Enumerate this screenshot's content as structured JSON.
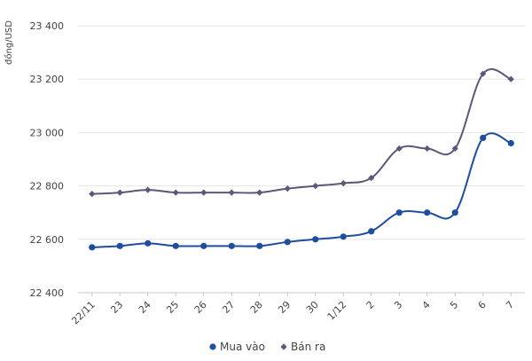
{
  "chart_data": {
    "type": "line",
    "ylabel": "đồng/USD",
    "ylim": [
      22400,
      23400
    ],
    "yticks": [
      22400,
      22600,
      22800,
      23000,
      23200,
      23400
    ],
    "ytick_labels": [
      "22 400",
      "22 600",
      "22 800",
      "23 000",
      "23 200",
      "23 400"
    ],
    "categories": [
      "22/11",
      "23",
      "24",
      "25",
      "26",
      "27",
      "28",
      "29",
      "30",
      "1/12",
      "2",
      "3",
      "4",
      "5",
      "6",
      "7"
    ],
    "grid": "horizontal",
    "legend_position": "bottom-center",
    "series": [
      {
        "name": "Mua vào",
        "color": "#1f4e9e",
        "marker": "circle",
        "values": [
          22570,
          22575,
          22585,
          22575,
          22575,
          22575,
          22575,
          22590,
          22600,
          22610,
          22630,
          22700,
          22700,
          22700,
          22980,
          22960
        ]
      },
      {
        "name": "Bán ra",
        "color": "#5b5878",
        "marker": "diamond",
        "values": [
          22770,
          22775,
          22785,
          22775,
          22775,
          22775,
          22775,
          22790,
          22800,
          22810,
          22830,
          22940,
          22940,
          22940,
          23220,
          23200
        ]
      }
    ]
  }
}
